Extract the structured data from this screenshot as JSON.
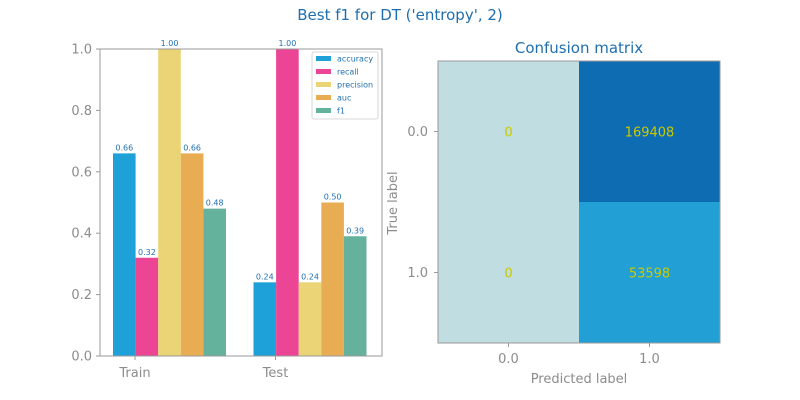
{
  "suptitle": "Best f1 for DT ('entropy', 2)",
  "colors": {
    "title": "#1F6FB0",
    "axis": "#999999",
    "tick_label": "#8C8C8C",
    "data_label": "#1F6FB0",
    "accuracy": "#1EA1D9",
    "recall": "#EC4595",
    "precision": "#EAD475",
    "auc": "#E8AD52",
    "f1": "#64B19C",
    "cm_low": "#C0DEE2",
    "cm_mid": "#22A0D6",
    "cm_high": "#0E6DB2",
    "cm_text": "#C9C900"
  },
  "chart_data": [
    {
      "type": "bar",
      "title": "",
      "xlabel": "",
      "ylabel": "",
      "categories": [
        "Train",
        "Test"
      ],
      "ylim": [
        0,
        1
      ],
      "yticks": [
        "0.0",
        "0.2",
        "0.4",
        "0.6",
        "0.8",
        "1.0"
      ],
      "grid": false,
      "legend_position": "top-right",
      "series": [
        {
          "name": "accuracy",
          "values": [
            0.66,
            0.24
          ],
          "labels": [
            "0.66",
            "0.24"
          ]
        },
        {
          "name": "recall",
          "values": [
            0.32,
            1.0
          ],
          "labels": [
            "0.32",
            "1.00"
          ]
        },
        {
          "name": "precision",
          "values": [
            1.0,
            0.24
          ],
          "labels": [
            "1.00",
            "0.24"
          ]
        },
        {
          "name": "auc",
          "values": [
            0.66,
            0.5
          ],
          "labels": [
            "0.66",
            "0.50"
          ]
        },
        {
          "name": "f1",
          "values": [
            0.48,
            0.39
          ],
          "labels": [
            "0.48",
            "0.39"
          ]
        }
      ]
    },
    {
      "type": "heatmap",
      "title": "Confusion matrix",
      "xlabel": "Predicted label",
      "ylabel": "True label",
      "x_categories": [
        "0.0",
        "1.0"
      ],
      "y_categories": [
        "0.0",
        "1.0"
      ],
      "values": [
        [
          0,
          169408
        ],
        [
          0,
          53598
        ]
      ],
      "labels": [
        [
          "0",
          "169408"
        ],
        [
          "0",
          "53598"
        ]
      ]
    }
  ]
}
